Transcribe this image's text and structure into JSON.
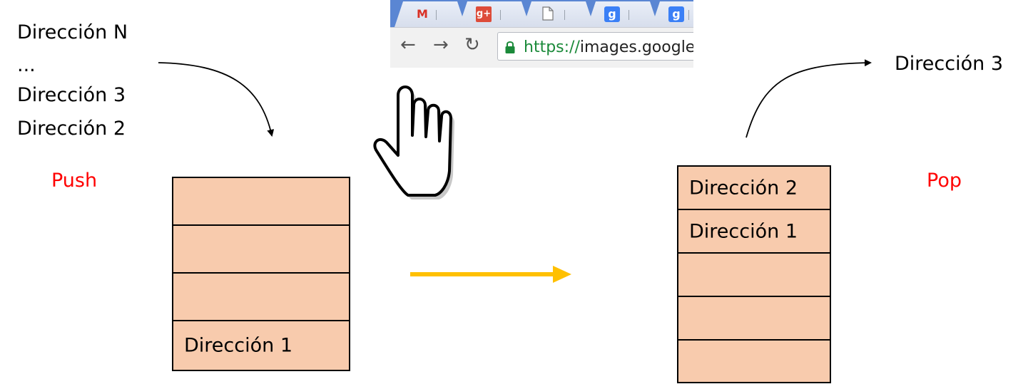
{
  "left": {
    "queue": [
      "Dirección N",
      "...",
      "Dirección 3",
      "Dirección 2"
    ],
    "operation": "Push",
    "stack_cells": [
      "",
      "",
      "",
      "Dirección 1"
    ]
  },
  "right": {
    "popped": "Dirección 3",
    "operation": "Pop",
    "stack_cells": [
      "Dirección 2",
      "Dirección 1",
      "",
      "",
      ""
    ]
  },
  "browser": {
    "tabs": [
      {
        "icon": "gmail-icon",
        "glyph": "M"
      },
      {
        "icon": "google-plus-icon",
        "glyph": "g+"
      },
      {
        "icon": "blank-page-icon",
        "glyph": ""
      },
      {
        "icon": "google-icon",
        "glyph": "g"
      },
      {
        "icon": "google-icon",
        "glyph": "g"
      }
    ],
    "url_scheme": "https://",
    "url_rest": "images.google"
  },
  "colors": {
    "stack_fill": "#f8cbad",
    "operation_label": "#ff0000",
    "transition_arrow": "#ffc000"
  }
}
